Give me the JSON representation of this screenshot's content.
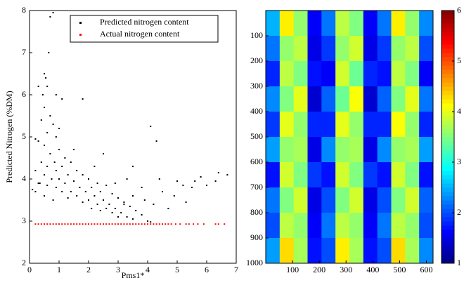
{
  "chart_data": [
    {
      "type": "scatter",
      "xlabel": "Pms1*",
      "ylabel": "Predicted Nitrogen (%DM)",
      "xlim": [
        0,
        7
      ],
      "ylim": [
        2,
        8
      ],
      "xticks": [
        0,
        1,
        2,
        3,
        4,
        5,
        6,
        7
      ],
      "yticks": [
        2,
        3,
        4,
        5,
        6,
        7,
        8
      ],
      "legend": "upper right",
      "series": [
        {
          "name": "Predicted nitrogen content",
          "color": "#000000",
          "x": [
            0.7,
            0.8,
            0.65,
            0.5,
            0.55,
            0.3,
            0.6,
            0.45,
            0.9,
            1.1,
            0.5,
            0.7,
            0.4,
            0.8,
            0.6,
            0.9,
            0.3,
            0.5,
            1.0,
            0.7,
            1.2,
            0.4,
            0.85,
            1.4,
            0.6,
            1.1,
            0.2,
            0.9,
            1.6,
            0.5,
            1.3,
            1.8,
            0.75,
            1.0,
            2.0,
            0.35,
            1.2,
            1.5,
            2.3,
            0.6,
            0.9,
            1.7,
            2.1,
            2.6,
            0.2,
            1.1,
            1.4,
            1.9,
            2.4,
            0.5,
            1.6,
            2.2,
            2.8,
            0.8,
            1.3,
            2.0,
            2.5,
            3.0,
            1.8,
            2.3,
            2.7,
            3.2,
            2.1,
            2.6,
            2.9,
            3.4,
            2.4,
            2.8,
            3.1,
            3.6,
            3.0,
            3.3,
            3.8,
            3.5,
            4.0,
            4.1,
            3.2,
            3.5,
            3.9,
            4.2,
            4.5,
            4.7,
            4.4,
            3.3,
            4.1,
            4.3,
            3.5,
            2.5,
            1.8,
            5.0,
            5.2,
            5.5,
            4.9,
            5.3,
            5.8,
            6.0,
            6.4,
            6.7,
            6.3,
            5.6,
            0.3,
            0.1,
            0.2,
            1.0,
            1.5,
            2.2,
            3.8,
            2.9
          ],
          "values": [
            7.85,
            7.95,
            7.0,
            6.5,
            6.4,
            6.2,
            6.2,
            6.0,
            6.0,
            5.9,
            5.7,
            5.5,
            5.4,
            5.3,
            5.1,
            5.0,
            4.9,
            4.8,
            4.7,
            4.6,
            4.5,
            4.4,
            4.4,
            4.4,
            4.3,
            4.3,
            4.2,
            4.2,
            4.2,
            4.1,
            4.1,
            4.1,
            4.0,
            4.0,
            4.0,
            3.9,
            3.9,
            3.95,
            3.9,
            3.85,
            3.8,
            3.8,
            3.8,
            3.85,
            3.7,
            3.7,
            3.7,
            3.7,
            3.7,
            3.6,
            3.6,
            3.6,
            3.65,
            3.5,
            3.55,
            3.5,
            3.5,
            3.55,
            3.45,
            3.4,
            3.4,
            3.45,
            3.3,
            3.3,
            3.3,
            3.35,
            3.25,
            3.2,
            3.2,
            3.25,
            3.1,
            3.1,
            3.15,
            3.05,
            3.0,
            2.98,
            3.4,
            3.6,
            3.5,
            3.4,
            3.7,
            3.3,
            4.0,
            4.0,
            5.25,
            4.9,
            4.3,
            4.6,
            5.9,
            3.95,
            3.85,
            3.8,
            3.6,
            3.45,
            4.05,
            3.85,
            4.15,
            4.1,
            3.95,
            3.95,
            3.9,
            3.75,
            4.95,
            5.2,
            4.7,
            4.3,
            3.8,
            3.9
          ]
        },
        {
          "name": "Actual nitrogen content",
          "color": "#ff0000",
          "x": [
            0.2,
            0.3,
            0.4,
            0.5,
            0.6,
            0.7,
            0.8,
            0.9,
            1.0,
            1.1,
            1.2,
            1.3,
            1.4,
            1.5,
            1.6,
            1.7,
            1.8,
            1.9,
            2.0,
            2.1,
            2.2,
            2.3,
            2.4,
            2.5,
            2.6,
            2.7,
            2.8,
            2.9,
            3.0,
            3.1,
            3.2,
            3.3,
            3.4,
            3.5,
            3.6,
            3.7,
            3.8,
            3.9,
            4.0,
            4.1,
            4.2,
            4.3,
            4.4,
            4.5,
            4.6,
            4.7,
            4.8,
            4.95,
            5.1,
            5.3,
            5.4,
            5.55,
            5.7,
            5.9,
            6.3,
            6.4,
            6.6
          ],
          "values": [
            2.93,
            2.93,
            2.93,
            2.93,
            2.93,
            2.93,
            2.93,
            2.93,
            2.93,
            2.93,
            2.93,
            2.93,
            2.93,
            2.93,
            2.93,
            2.93,
            2.93,
            2.93,
            2.93,
            2.93,
            2.93,
            2.93,
            2.93,
            2.93,
            2.93,
            2.93,
            2.93,
            2.93,
            2.93,
            2.93,
            2.93,
            2.93,
            2.93,
            2.93,
            2.93,
            2.93,
            2.93,
            2.93,
            2.93,
            2.93,
            2.93,
            2.93,
            2.93,
            2.93,
            2.93,
            2.93,
            2.93,
            2.93,
            2.93,
            2.93,
            2.93,
            2.93,
            2.93,
            2.93,
            2.93,
            2.93,
            2.93
          ]
        }
      ]
    },
    {
      "type": "heatmap",
      "colormap": "jet",
      "y_inverted": true,
      "xlim": [
        0,
        625
      ],
      "ylim": [
        0,
        1000
      ],
      "xticks": [
        100,
        200,
        300,
        400,
        500,
        600
      ],
      "yticks": [
        100,
        200,
        300,
        400,
        500,
        600,
        700,
        800,
        900,
        1000
      ],
      "clim": [
        1,
        6
      ],
      "cticks": [
        1,
        2,
        3,
        4,
        5,
        6
      ],
      "values": [
        [
          2.5,
          4.2,
          3.6,
          1.6,
          2.2,
          3.8,
          3.5,
          1.6,
          2.2,
          4.2,
          3.6,
          2.3
        ],
        [
          2.2,
          3.6,
          3.8,
          1.5,
          1.9,
          3.6,
          3.9,
          1.5,
          1.9,
          3.6,
          3.8,
          2.0
        ],
        [
          1.8,
          3.8,
          3.5,
          1.7,
          1.6,
          3.9,
          3.4,
          1.8,
          1.7,
          3.8,
          3.5,
          1.6
        ],
        [
          2.3,
          3.5,
          4.0,
          1.4,
          2.1,
          3.4,
          4.1,
          1.4,
          2.1,
          3.5,
          4.0,
          2.2
        ],
        [
          1.9,
          4.0,
          3.6,
          1.8,
          1.8,
          4.0,
          3.6,
          1.8,
          1.8,
          4.1,
          3.6,
          1.8
        ],
        [
          2.4,
          3.6,
          3.7,
          1.5,
          2.3,
          3.6,
          3.7,
          1.5,
          2.3,
          3.6,
          3.7,
          2.4
        ],
        [
          1.7,
          3.9,
          3.5,
          1.9,
          1.7,
          3.9,
          3.5,
          1.9,
          1.7,
          3.9,
          3.5,
          1.7
        ],
        [
          2.2,
          3.5,
          3.9,
          1.5,
          2.0,
          3.5,
          3.9,
          1.5,
          2.0,
          3.5,
          3.9,
          2.1
        ],
        [
          2.0,
          3.8,
          3.6,
          1.6,
          2.2,
          3.8,
          3.6,
          1.6,
          2.2,
          3.8,
          3.6,
          2.0
        ],
        [
          2.4,
          4.3,
          3.7,
          1.7,
          2.0,
          4.2,
          3.7,
          1.7,
          2.0,
          4.3,
          3.7,
          2.3
        ]
      ]
    }
  ]
}
